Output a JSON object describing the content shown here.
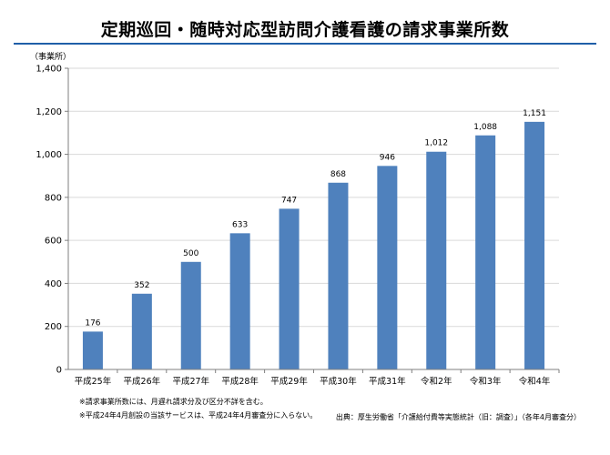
{
  "title": "定期巡回・随時対応型訪問介護看護の請求事業所数",
  "y_unit_label": "（事業所）",
  "notes": [
    "※請求事業所数には、月遅れ請求分及び区分不詳を含む。",
    "※平成24年4月創設の当該サービスは、平成24年4月審査分に入らない。"
  ],
  "source": "出典：厚生労働省「介護給付費等実態統計（旧：調査）」（各年4月審査分）",
  "colors": {
    "bar": "#4f81bd",
    "title_rule": "#1f5fa8",
    "grid": "#d9d9d9"
  },
  "chart_data": {
    "type": "bar",
    "categories": [
      "平成25年",
      "平成26年",
      "平成27年",
      "平成28年",
      "平成29年",
      "平成30年",
      "平成31年",
      "令和2年",
      "令和3年",
      "令和4年"
    ],
    "values": [
      176,
      352,
      500,
      633,
      747,
      868,
      946,
      1012,
      1088,
      1151
    ],
    "value_labels": [
      "176",
      "352",
      "500",
      "633",
      "747",
      "868",
      "946",
      "1,012",
      "1,088",
      "1,151"
    ],
    "y_ticks": [
      "0",
      "200",
      "400",
      "600",
      "800",
      "1,000",
      "1,200",
      "1,400"
    ],
    "ylim": [
      0,
      1400
    ],
    "grid": true,
    "legend": "none"
  }
}
